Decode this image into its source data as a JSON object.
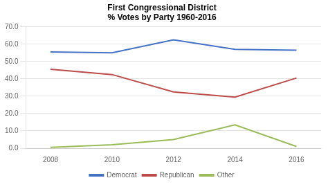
{
  "chart_data": {
    "type": "line",
    "title": [
      "First Congressional District",
      "% Votes by Party 1960-2016"
    ],
    "x": [
      2008,
      2010,
      2012,
      2014,
      2016
    ],
    "series": [
      {
        "name": "Democrat",
        "color": "#4472C4",
        "marker": "none",
        "values": [
          55.5,
          55.0,
          62.5,
          57.0,
          56.5
        ]
      },
      {
        "name": "Republican",
        "color": "#BE4B48",
        "marker": "none",
        "values": [
          45.5,
          42.5,
          32.5,
          29.5,
          40.5
        ]
      },
      {
        "name": "Other",
        "color": "#9BBB59",
        "marker": "none",
        "values": [
          0.5,
          2.0,
          5.0,
          13.5,
          1.0
        ]
      }
    ],
    "xlim": [
      2007.2,
      2016.8
    ],
    "xticks": [
      2008,
      2010,
      2012,
      2014,
      2016
    ],
    "ylim": [
      0,
      70
    ],
    "yticks": [
      {
        "value": 0,
        "label": "0.0"
      },
      {
        "value": 10,
        "label": "10.0"
      },
      {
        "value": 20,
        "label": "20.0"
      },
      {
        "value": 30,
        "label": "30.0"
      },
      {
        "value": 40,
        "label": "40.0"
      },
      {
        "value": 50,
        "label": "50.0"
      },
      {
        "value": 60,
        "label": "60.0"
      },
      {
        "value": 70,
        "label": "70.0"
      }
    ],
    "grid": "y",
    "legend": "bottom"
  }
}
